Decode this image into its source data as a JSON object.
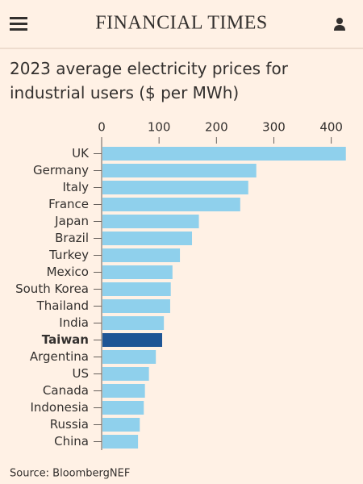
{
  "header": {
    "title": "FINANCIAL TIMES"
  },
  "chart_data": {
    "type": "bar",
    "orientation": "horizontal",
    "title": "2023 average electricity prices for industrial users ($ per MWh)",
    "source": "Source: BloombergNEF",
    "categories": [
      "UK",
      "Germany",
      "Italy",
      "France",
      "Japan",
      "Brazil",
      "Turkey",
      "Mexico",
      "South Korea",
      "Thailand",
      "India",
      "Taiwan",
      "Argentina",
      "US",
      "Canada",
      "Indonesia",
      "Russia",
      "China"
    ],
    "values": [
      424,
      268,
      254,
      240,
      168,
      156,
      135,
      122,
      119,
      118,
      107,
      104,
      93,
      81,
      74,
      72,
      65,
      62
    ],
    "colors": [
      "#8fd0ec",
      "#8fd0ec",
      "#8fd0ec",
      "#8fd0ec",
      "#8fd0ec",
      "#8fd0ec",
      "#8fd0ec",
      "#8fd0ec",
      "#8fd0ec",
      "#8fd0ec",
      "#8fd0ec",
      "#1e5595",
      "#8fd0ec",
      "#8fd0ec",
      "#8fd0ec",
      "#8fd0ec",
      "#8fd0ec",
      "#8fd0ec"
    ],
    "xlim": [
      0,
      430
    ],
    "xticks": [
      0,
      100,
      200,
      300,
      400
    ]
  }
}
